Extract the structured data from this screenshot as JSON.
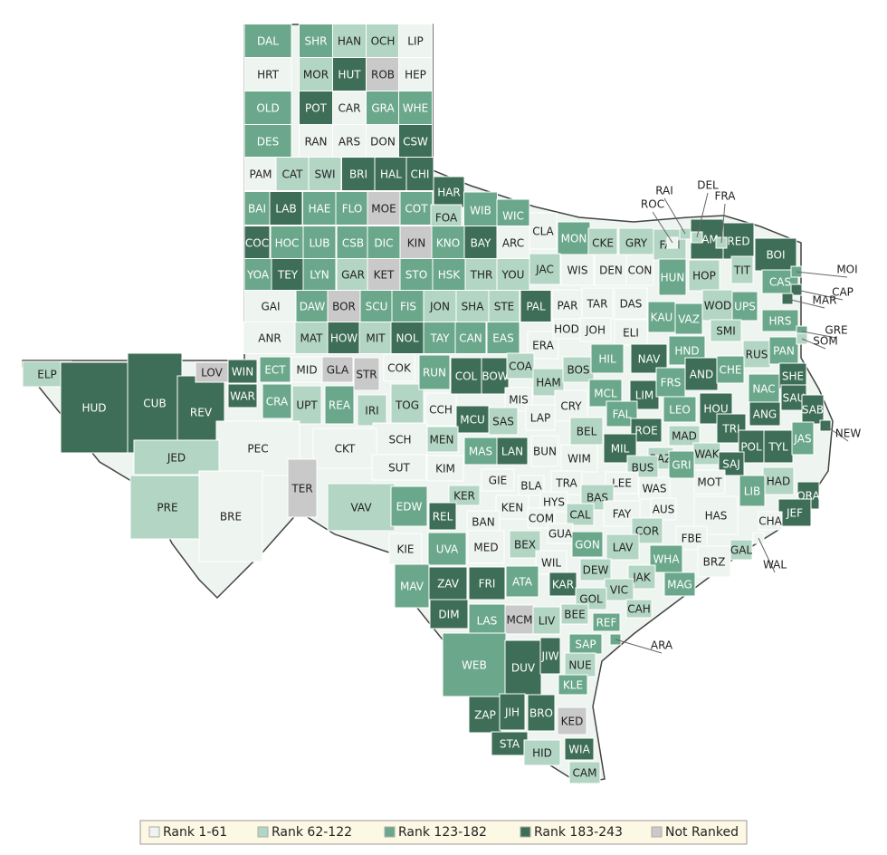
{
  "map": {
    "legend": [
      {
        "label": "Rank 1-61",
        "color": "#eef4f0"
      },
      {
        "label": "Rank 62-122",
        "color": "#b3d5c4"
      },
      {
        "label": "Rank 123-182",
        "color": "#6ba88b"
      },
      {
        "label": "Rank 183-243",
        "color": "#3e6e57"
      },
      {
        "label": "Not Ranked",
        "color": "#c9c9c9"
      }
    ],
    "counties": [
      {
        "label": "DAL",
        "tier": 2
      },
      {
        "label": "SHR",
        "tier": 2
      },
      {
        "label": "HAN",
        "tier": 1
      },
      {
        "label": "OCH",
        "tier": 1
      },
      {
        "label": "LIP",
        "tier": 0
      },
      {
        "label": "HRT",
        "tier": 0
      },
      {
        "label": "MOR",
        "tier": 1
      },
      {
        "label": "HUT",
        "tier": 3
      },
      {
        "label": "ROB",
        "tier": 4
      },
      {
        "label": "HEP",
        "tier": 0
      },
      {
        "label": "OLD",
        "tier": 2
      },
      {
        "label": "POT",
        "tier": 3
      },
      {
        "label": "CAR",
        "tier": 0
      },
      {
        "label": "GRA",
        "tier": 2
      },
      {
        "label": "WHE",
        "tier": 2
      },
      {
        "label": "DES",
        "tier": 2
      },
      {
        "label": "RAN",
        "tier": 0
      },
      {
        "label": "ARS",
        "tier": 0
      },
      {
        "label": "DON",
        "tier": 0
      },
      {
        "label": "CSW",
        "tier": 3
      },
      {
        "label": "PAM",
        "tier": 0
      },
      {
        "label": "CAT",
        "tier": 1
      },
      {
        "label": "SWI",
        "tier": 1
      },
      {
        "label": "BRI",
        "tier": 3
      },
      {
        "label": "HAL",
        "tier": 3
      },
      {
        "label": "CHI",
        "tier": 3
      },
      {
        "label": "BAI",
        "tier": 2
      },
      {
        "label": "LAB",
        "tier": 3
      },
      {
        "label": "HAE",
        "tier": 2
      },
      {
        "label": "FLO",
        "tier": 2
      },
      {
        "label": "MOE",
        "tier": 4
      },
      {
        "label": "COT",
        "tier": 2
      },
      {
        "label": "HAR",
        "tier": 3
      },
      {
        "label": "FOA",
        "tier": 1
      },
      {
        "label": "WIB",
        "tier": 2
      },
      {
        "label": "WIC",
        "tier": 2
      },
      {
        "label": "COC",
        "tier": 3
      },
      {
        "label": "HOC",
        "tier": 2
      },
      {
        "label": "LUB",
        "tier": 2
      },
      {
        "label": "CSB",
        "tier": 2
      },
      {
        "label": "DIC",
        "tier": 2
      },
      {
        "label": "KIN",
        "tier": 4
      },
      {
        "label": "KNO",
        "tier": 2
      },
      {
        "label": "BAY",
        "tier": 3
      },
      {
        "label": "ARC",
        "tier": 0
      },
      {
        "label": "CLA",
        "tier": 0
      },
      {
        "label": "MON",
        "tier": 2
      },
      {
        "label": "CKE",
        "tier": 1
      },
      {
        "label": "GRY",
        "tier": 1
      },
      {
        "label": "FAN",
        "tier": 1
      },
      {
        "label": "YOA",
        "tier": 2
      },
      {
        "label": "TEY",
        "tier": 3
      },
      {
        "label": "LYN",
        "tier": 2
      },
      {
        "label": "GAR",
        "tier": 1
      },
      {
        "label": "KET",
        "tier": 4
      },
      {
        "label": "STO",
        "tier": 2
      },
      {
        "label": "HSK",
        "tier": 2
      },
      {
        "label": "THR",
        "tier": 1
      },
      {
        "label": "YOU",
        "tier": 1
      },
      {
        "label": "JAC",
        "tier": 1
      },
      {
        "label": "WIS",
        "tier": 0
      },
      {
        "label": "DEN",
        "tier": 0
      },
      {
        "label": "CON",
        "tier": 0
      },
      {
        "label": "HUN",
        "tier": 2
      },
      {
        "label": "LAM",
        "tier": 3
      },
      {
        "label": "RED",
        "tier": 3
      },
      {
        "label": "BOI",
        "tier": 3
      },
      {
        "label": "HOP",
        "tier": 1
      },
      {
        "label": "TIT",
        "tier": 1
      },
      {
        "label": "CAS",
        "tier": 2
      },
      {
        "label": "GAI",
        "tier": 0
      },
      {
        "label": "DAW",
        "tier": 2
      },
      {
        "label": "BOR",
        "tier": 4
      },
      {
        "label": "SCU",
        "tier": 2
      },
      {
        "label": "FIS",
        "tier": 2
      },
      {
        "label": "JON",
        "tier": 1
      },
      {
        "label": "SHA",
        "tier": 1
      },
      {
        "label": "STE",
        "tier": 1
      },
      {
        "label": "PAL",
        "tier": 3
      },
      {
        "label": "PAR",
        "tier": 0
      },
      {
        "label": "TAR",
        "tier": 0
      },
      {
        "label": "DAS",
        "tier": 0
      },
      {
        "label": "KAU",
        "tier": 2
      },
      {
        "label": "VAZ",
        "tier": 2
      },
      {
        "label": "WOD",
        "tier": 1
      },
      {
        "label": "UPS",
        "tier": 2
      },
      {
        "label": "HRS",
        "tier": 2
      },
      {
        "label": "SMI",
        "tier": 1
      },
      {
        "label": "RUS",
        "tier": 1
      },
      {
        "label": "PAN",
        "tier": 2
      },
      {
        "label": "ANR",
        "tier": 0
      },
      {
        "label": "MAT",
        "tier": 1
      },
      {
        "label": "HOW",
        "tier": 3
      },
      {
        "label": "MIT",
        "tier": 1
      },
      {
        "label": "NOL",
        "tier": 3
      },
      {
        "label": "TAY",
        "tier": 2
      },
      {
        "label": "CAN",
        "tier": 2
      },
      {
        "label": "EAS",
        "tier": 2
      },
      {
        "label": "ERA",
        "tier": 0
      },
      {
        "label": "HOD",
        "tier": 0
      },
      {
        "label": "JOH",
        "tier": 0
      },
      {
        "label": "ELI",
        "tier": 0
      },
      {
        "label": "HND",
        "tier": 2
      },
      {
        "label": "ELP",
        "tier": 1
      },
      {
        "label": "HUD",
        "tier": 3
      },
      {
        "label": "CUB",
        "tier": 3
      },
      {
        "label": "REV",
        "tier": 3
      },
      {
        "label": "LOV",
        "tier": 4
      },
      {
        "label": "WIN",
        "tier": 3
      },
      {
        "label": "WAR",
        "tier": 3
      },
      {
        "label": "ECT",
        "tier": 2
      },
      {
        "label": "CRA",
        "tier": 2
      },
      {
        "label": "MID",
        "tier": 0
      },
      {
        "label": "UPT",
        "tier": 1
      },
      {
        "label": "GLA",
        "tier": 4
      },
      {
        "label": "REA",
        "tier": 2
      },
      {
        "label": "STR",
        "tier": 4
      },
      {
        "label": "IRI",
        "tier": 1
      },
      {
        "label": "COK",
        "tier": 0
      },
      {
        "label": "TOG",
        "tier": 1
      },
      {
        "label": "RUN",
        "tier": 2
      },
      {
        "label": "CCH",
        "tier": 0
      },
      {
        "label": "COL",
        "tier": 3
      },
      {
        "label": "BOW",
        "tier": 3
      },
      {
        "label": "COA",
        "tier": 1
      },
      {
        "label": "HAM",
        "tier": 1
      },
      {
        "label": "BOS",
        "tier": 1
      },
      {
        "label": "HIL",
        "tier": 2
      },
      {
        "label": "NAV",
        "tier": 3
      },
      {
        "label": "AND",
        "tier": 3
      },
      {
        "label": "CHE",
        "tier": 2
      },
      {
        "label": "SHE",
        "tier": 3
      },
      {
        "label": "NAC",
        "tier": 2
      },
      {
        "label": "SAU",
        "tier": 3
      },
      {
        "label": "SAB",
        "tier": 3
      },
      {
        "label": "ANG",
        "tier": 3
      },
      {
        "label": "MIS",
        "tier": 0
      },
      {
        "label": "MCL",
        "tier": 2
      },
      {
        "label": "LIM",
        "tier": 3
      },
      {
        "label": "FRS",
        "tier": 2
      },
      {
        "label": "LEO",
        "tier": 2
      },
      {
        "label": "HOU",
        "tier": 3
      },
      {
        "label": "CRY",
        "tier": 0
      },
      {
        "label": "LAP",
        "tier": 0
      },
      {
        "label": "FAL",
        "tier": 2
      },
      {
        "label": "ROE",
        "tier": 3
      },
      {
        "label": "MAD",
        "tier": 1
      },
      {
        "label": "TRI",
        "tier": 3
      },
      {
        "label": "POL",
        "tier": 3
      },
      {
        "label": "TYL",
        "tier": 3
      },
      {
        "label": "JAS",
        "tier": 2
      },
      {
        "label": "BEL",
        "tier": 1
      },
      {
        "label": "MIL",
        "tier": 3
      },
      {
        "label": "BAZ",
        "tier": 1
      },
      {
        "label": "WAK",
        "tier": 1
      },
      {
        "label": "SAJ",
        "tier": 3
      },
      {
        "label": "MCU",
        "tier": 3
      },
      {
        "label": "SAS",
        "tier": 1
      },
      {
        "label": "MEN",
        "tier": 1
      },
      {
        "label": "SCH",
        "tier": 0
      },
      {
        "label": "PEC",
        "tier": 0
      },
      {
        "label": "CKT",
        "tier": 0
      },
      {
        "label": "JED",
        "tier": 1
      },
      {
        "label": "PRE",
        "tier": 1
      },
      {
        "label": "BRE",
        "tier": 0
      },
      {
        "label": "TER",
        "tier": 4
      },
      {
        "label": "SUT",
        "tier": 0
      },
      {
        "label": "KIM",
        "tier": 0
      },
      {
        "label": "MAS",
        "tier": 2
      },
      {
        "label": "LAN",
        "tier": 3
      },
      {
        "label": "BUN",
        "tier": 0
      },
      {
        "label": "WIM",
        "tier": 0
      },
      {
        "label": "BUS",
        "tier": 1
      },
      {
        "label": "GRI",
        "tier": 2
      },
      {
        "label": "MOT",
        "tier": 0
      },
      {
        "label": "HAD",
        "tier": 1
      },
      {
        "label": "LIB",
        "tier": 2
      },
      {
        "label": "ORA",
        "tier": 3
      },
      {
        "label": "JEF",
        "tier": 3
      },
      {
        "label": "BLA",
        "tier": 0
      },
      {
        "label": "TRA",
        "tier": 0
      },
      {
        "label": "LEE",
        "tier": 0
      },
      {
        "label": "WAS",
        "tier": 0
      },
      {
        "label": "GIE",
        "tier": 0
      },
      {
        "label": "KER",
        "tier": 1
      },
      {
        "label": "KEN",
        "tier": 0
      },
      {
        "label": "HYS",
        "tier": 0
      },
      {
        "label": "BAS",
        "tier": 1
      },
      {
        "label": "AUS",
        "tier": 0
      },
      {
        "label": "HAS",
        "tier": 0
      },
      {
        "label": "CHA",
        "tier": 0
      },
      {
        "label": "VAV",
        "tier": 1
      },
      {
        "label": "EDW",
        "tier": 2
      },
      {
        "label": "REL",
        "tier": 3
      },
      {
        "label": "BAN",
        "tier": 0
      },
      {
        "label": "COM",
        "tier": 0
      },
      {
        "label": "CAL",
        "tier": 1
      },
      {
        "label": "FAY",
        "tier": 0
      },
      {
        "label": "GUA",
        "tier": 0
      },
      {
        "label": "BEX",
        "tier": 1
      },
      {
        "label": "COR",
        "tier": 1
      },
      {
        "label": "FBE",
        "tier": 0
      },
      {
        "label": "GAL",
        "tier": 1
      },
      {
        "label": "KIE",
        "tier": 0
      },
      {
        "label": "UVA",
        "tier": 2
      },
      {
        "label": "MED",
        "tier": 0
      },
      {
        "label": "WIL",
        "tier": 0
      },
      {
        "label": "GON",
        "tier": 2
      },
      {
        "label": "LAV",
        "tier": 1
      },
      {
        "label": "WHA",
        "tier": 2
      },
      {
        "label": "BRZ",
        "tier": 0
      },
      {
        "label": "MAV",
        "tier": 2
      },
      {
        "label": "ZAV",
        "tier": 3
      },
      {
        "label": "FRI",
        "tier": 3
      },
      {
        "label": "ATA",
        "tier": 2
      },
      {
        "label": "KAR",
        "tier": 3
      },
      {
        "label": "DEW",
        "tier": 1
      },
      {
        "label": "JAK",
        "tier": 1
      },
      {
        "label": "MAG",
        "tier": 2
      },
      {
        "label": "VIC",
        "tier": 1
      },
      {
        "label": "GOL",
        "tier": 1
      },
      {
        "label": "CAH",
        "tier": 1
      },
      {
        "label": "DIM",
        "tier": 3
      },
      {
        "label": "LAS",
        "tier": 2
      },
      {
        "label": "MCM",
        "tier": 4
      },
      {
        "label": "LIV",
        "tier": 1
      },
      {
        "label": "BEE",
        "tier": 1
      },
      {
        "label": "REF",
        "tier": 2
      },
      {
        "label": "SAP",
        "tier": 2
      },
      {
        "label": "WEB",
        "tier": 2
      },
      {
        "label": "DUV",
        "tier": 3
      },
      {
        "label": "JIW",
        "tier": 3
      },
      {
        "label": "NUE",
        "tier": 1
      },
      {
        "label": "KLE",
        "tier": 2
      },
      {
        "label": "ZAP",
        "tier": 3
      },
      {
        "label": "JIH",
        "tier": 3
      },
      {
        "label": "BRO",
        "tier": 3
      },
      {
        "label": "KED",
        "tier": 4
      },
      {
        "label": "STA",
        "tier": 3
      },
      {
        "label": "WIA",
        "tier": 3
      },
      {
        "label": "HID",
        "tier": 1
      },
      {
        "label": "CAM",
        "tier": 1
      },
      {
        "label": "RAI",
        "tier": 1
      },
      {
        "label": "ROC",
        "tier": 0
      },
      {
        "label": "DEL",
        "tier": 1
      },
      {
        "label": "FRA",
        "tier": 1
      },
      {
        "label": "MOI",
        "tier": 2
      },
      {
        "label": "CAP",
        "tier": 3
      },
      {
        "label": "MAR",
        "tier": 3
      },
      {
        "label": "GRE",
        "tier": 2
      },
      {
        "label": "SOM",
        "tier": 1
      },
      {
        "label": "NEW",
        "tier": 3
      },
      {
        "label": "WAL",
        "tier": 0
      },
      {
        "label": "ARA",
        "tier": 2
      }
    ]
  }
}
